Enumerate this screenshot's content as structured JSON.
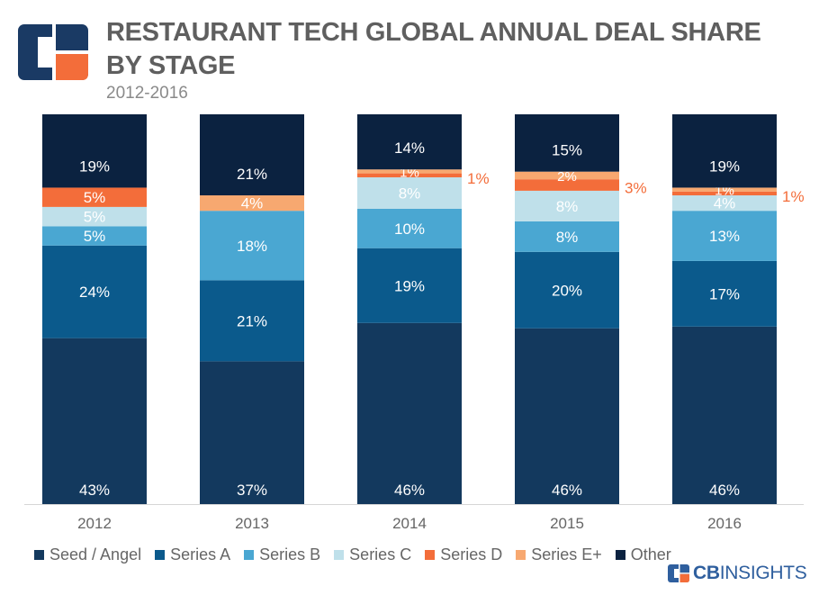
{
  "header": {
    "title": "RESTAURANT TECH GLOBAL ANNUAL DEAL SHARE BY STAGE",
    "subtitle": "2012-2016"
  },
  "brand": {
    "bold": "CB",
    "light": "INSIGHTS"
  },
  "colors": {
    "Seed / Angel": "#13395e",
    "Series A": "#0b5a8c",
    "Series B": "#4aa7d2",
    "Series C": "#bfe0ea",
    "Series D": "#f36d3a",
    "Series E+": "#f7a870",
    "Other": "#0b2240",
    "logo_blue": "#1a3a64",
    "logo_orange": "#f36d3a",
    "brand_blue": "#2f5f9e"
  },
  "chart_data": {
    "type": "bar",
    "stacked": true,
    "categories": [
      "2012",
      "2013",
      "2014",
      "2015",
      "2016"
    ],
    "series": [
      {
        "name": "Seed / Angel",
        "values": [
          43,
          37,
          46,
          46,
          46
        ]
      },
      {
        "name": "Series A",
        "values": [
          24,
          21,
          19,
          20,
          17
        ]
      },
      {
        "name": "Series B",
        "values": [
          5,
          18,
          10,
          8,
          13
        ]
      },
      {
        "name": "Series C",
        "values": [
          5,
          0,
          8,
          8,
          4
        ]
      },
      {
        "name": "Series D",
        "values": [
          5,
          0,
          1,
          3,
          1
        ]
      },
      {
        "name": "Series E+",
        "values": [
          0,
          4,
          1,
          2,
          1
        ]
      },
      {
        "name": "Other",
        "values": [
          19,
          21,
          14,
          15,
          19
        ]
      }
    ],
    "data_labels": [
      [
        "43%",
        "24%",
        "5%",
        "5%",
        "5%",
        "",
        "19%"
      ],
      [
        "37%",
        "21%",
        "18%",
        "",
        "",
        "4%",
        "21%"
      ],
      [
        "46%",
        "19%",
        "10%",
        "8%",
        "1%",
        "1%",
        "14%"
      ],
      [
        "46%",
        "20%",
        "8%",
        "8%",
        "3%",
        "2%",
        "15%"
      ],
      [
        "46%",
        "17%",
        "13%",
        "4%",
        "1%",
        "1%",
        "19%"
      ]
    ],
    "ylim": [
      0,
      100
    ],
    "legend_position": "bottom",
    "grid": false,
    "xlabel": "",
    "ylabel": ""
  }
}
